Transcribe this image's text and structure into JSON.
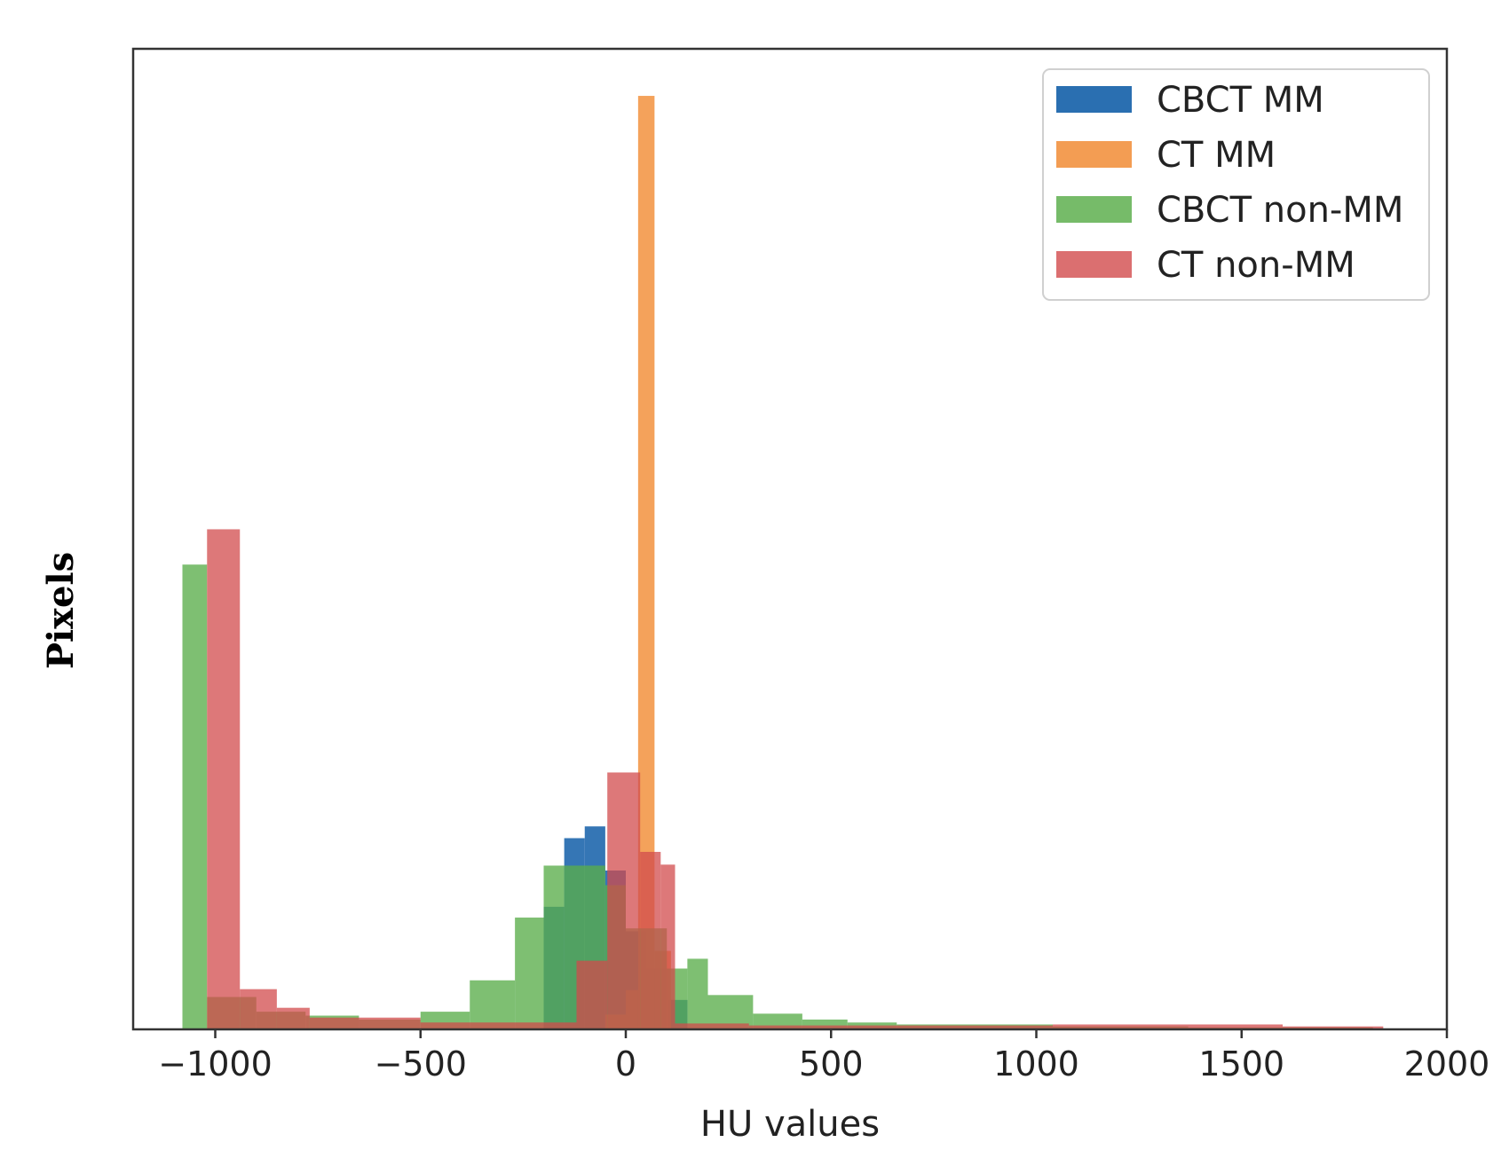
{
  "chart_data": {
    "type": "bar",
    "subtype": "overlapping-histogram",
    "title": "",
    "xlabel": "HU values",
    "ylabel": "Pixels",
    "xlim": [
      -1200,
      2000
    ],
    "ylim": [
      0,
      1000
    ],
    "y_ticks_shown": false,
    "x_ticks": [
      -1000,
      -500,
      0,
      500,
      1000,
      1500,
      2000
    ],
    "x_tick_labels": [
      "−1000",
      "−500",
      "0",
      "500",
      "1000",
      "1500",
      "2000"
    ],
    "grid": false,
    "legend_position": "top-right",
    "series": [
      {
        "name": "CBCT MM",
        "color": "#1f67ad",
        "opacity": 0.9,
        "bins": [
          {
            "x0": -200,
            "x1": -150,
            "y": 125
          },
          {
            "x0": -150,
            "x1": -100,
            "y": 195
          },
          {
            "x0": -100,
            "x1": -50,
            "y": 207
          },
          {
            "x0": -50,
            "x1": 0,
            "y": 162
          },
          {
            "x0": 0,
            "x1": 50,
            "y": 100
          },
          {
            "x0": 50,
            "x1": 100,
            "y": 62
          },
          {
            "x0": 100,
            "x1": 150,
            "y": 30
          }
        ]
      },
      {
        "name": "CT MM",
        "color": "#f39a4d",
        "opacity": 0.92,
        "bins": [
          {
            "x0": -50,
            "x1": 0,
            "y": 15
          },
          {
            "x0": 0,
            "x1": 30,
            "y": 40
          },
          {
            "x0": 30,
            "x1": 70,
            "y": 952
          },
          {
            "x0": 70,
            "x1": 110,
            "y": 80
          }
        ]
      },
      {
        "name": "CBCT non-MM",
        "color": "#5aad4a",
        "opacity": 0.78,
        "bins": [
          {
            "x0": -1080,
            "x1": -1020,
            "y": 474
          },
          {
            "x0": -1020,
            "x1": -900,
            "y": 33
          },
          {
            "x0": -900,
            "x1": -780,
            "y": 18
          },
          {
            "x0": -780,
            "x1": -650,
            "y": 14
          },
          {
            "x0": -650,
            "x1": -500,
            "y": 10
          },
          {
            "x0": -500,
            "x1": -380,
            "y": 18
          },
          {
            "x0": -380,
            "x1": -270,
            "y": 50
          },
          {
            "x0": -270,
            "x1": -200,
            "y": 114
          },
          {
            "x0": -200,
            "x1": -150,
            "y": 167
          },
          {
            "x0": -150,
            "x1": -50,
            "y": 167
          },
          {
            "x0": -50,
            "x1": 0,
            "y": 147
          },
          {
            "x0": 0,
            "x1": 100,
            "y": 103
          },
          {
            "x0": 100,
            "x1": 150,
            "y": 62
          },
          {
            "x0": 150,
            "x1": 200,
            "y": 72
          },
          {
            "x0": 200,
            "x1": 310,
            "y": 35
          },
          {
            "x0": 310,
            "x1": 430,
            "y": 16
          },
          {
            "x0": 430,
            "x1": 540,
            "y": 10
          },
          {
            "x0": 540,
            "x1": 660,
            "y": 7
          },
          {
            "x0": 660,
            "x1": 1040,
            "y": 5
          },
          {
            "x0": 1040,
            "x1": 1370,
            "y": 3
          },
          {
            "x0": 1370,
            "x1": 1820,
            "y": 2
          }
        ]
      },
      {
        "name": "CT non-MM",
        "color": "#d24b4c",
        "opacity": 0.75,
        "bins": [
          {
            "x0": -1020,
            "x1": -940,
            "y": 510
          },
          {
            "x0": -940,
            "x1": -850,
            "y": 41
          },
          {
            "x0": -850,
            "x1": -770,
            "y": 22
          },
          {
            "x0": -770,
            "x1": -600,
            "y": 12
          },
          {
            "x0": -600,
            "x1": -500,
            "y": 12
          },
          {
            "x0": -500,
            "x1": -120,
            "y": 7
          },
          {
            "x0": -120,
            "x1": -45,
            "y": 70
          },
          {
            "x0": -45,
            "x1": 35,
            "y": 262
          },
          {
            "x0": 35,
            "x1": 85,
            "y": 181
          },
          {
            "x0": 85,
            "x1": 120,
            "y": 168
          },
          {
            "x0": 120,
            "x1": 300,
            "y": 6
          },
          {
            "x0": 300,
            "x1": 1040,
            "y": 4
          },
          {
            "x0": 1040,
            "x1": 1600,
            "y": 5
          },
          {
            "x0": 1600,
            "x1": 1845,
            "y": 3
          }
        ]
      }
    ]
  }
}
